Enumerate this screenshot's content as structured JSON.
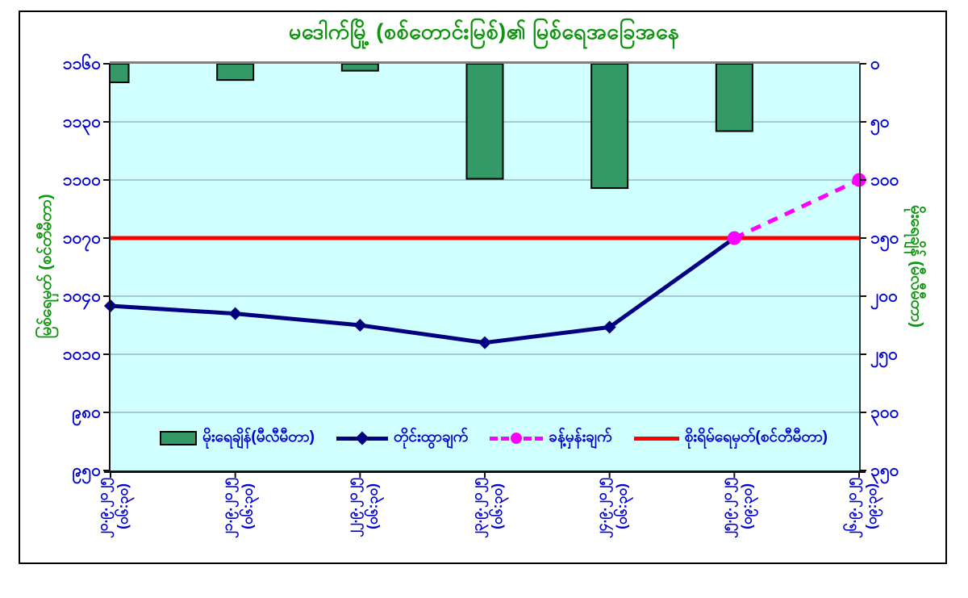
{
  "chart_data": {
    "type": "combo-bar-line",
    "title": "မဒေါက်မြို့ (စစ်တောင်းမြစ်)၏ မြစ်ရေအခြေအနေ",
    "title_color": "#0E940E",
    "plot_bg": "#CFFFFF",
    "gridline_color": "#8FA9B4",
    "tick_label_color": "#0000CC",
    "categories": [
      "၂၀.၉.၂၀၂၅",
      "၂၁.၉.၂၀၂၅",
      "၂၂.၉.၂၀၂၅",
      "၂၃.၉.၂၀၂၅",
      "၂၄.၉.၂၀၂၅",
      "၂၅.၉.၂၀၂၅",
      "၂၆.၉.၂၀၂၅"
    ],
    "category_times": [
      "(၀၆:၃၀)",
      "(၀၆:၃၀)",
      "(၀၆:၃၀)",
      "(၀၆:၃၀)",
      "(၀၆:၃၀)",
      "(၀၉:၃၀)",
      "(၀၉:၃၀)"
    ],
    "left_axis": {
      "title": "မြစ်ရေမှတ် (စင်တီမီတာ)",
      "min": 950,
      "max": 1160,
      "step": 30,
      "tick_labels_top_to_bottom": [
        "၁၁၆၀",
        "၁၁၃၀",
        "၁၁၀၀",
        "၁၀၇၀",
        "၁၀၄၀",
        "၁၀၁၀",
        "၉၈၀",
        "၉၅၀"
      ]
    },
    "right_axis": {
      "title": "မိုးရေချိန် (မီလီမီတာ)",
      "min": 0,
      "max": 350,
      "step": 50,
      "reversed": true,
      "tick_labels_top_to_bottom": [
        "၀",
        "၅၀",
        "၁၀၀",
        "၁၅၀",
        "၂၀၀",
        "၂၅၀",
        "၃၀၀",
        "၃၅၀"
      ]
    },
    "series": [
      {
        "name": "မိုးရေချိန်(မီလီမီတာ)",
        "type": "bar",
        "axis": "right",
        "color": "#339966",
        "values": [
          16,
          14,
          6,
          99,
          107,
          58,
          null
        ]
      },
      {
        "name": "တိုင်းထွာချက်",
        "type": "line",
        "axis": "left",
        "color": "#000080",
        "marker": "diamond",
        "values": [
          1035,
          1031,
          1025,
          1016,
          1024,
          1070,
          null
        ]
      },
      {
        "name": "ခန့်မှန်းချက်",
        "type": "line",
        "style": "dashed",
        "axis": "left",
        "color": "#FF00FF",
        "marker": "circle",
        "values": [
          null,
          null,
          null,
          null,
          null,
          1070,
          1100
        ]
      },
      {
        "name": "စိုးရိမ်ရေမှတ်(စင်တီမီတာ)",
        "type": "constant-line",
        "axis": "left",
        "color": "#FF0000",
        "value": 1070
      }
    ],
    "legend_position": "bottom-inside"
  }
}
